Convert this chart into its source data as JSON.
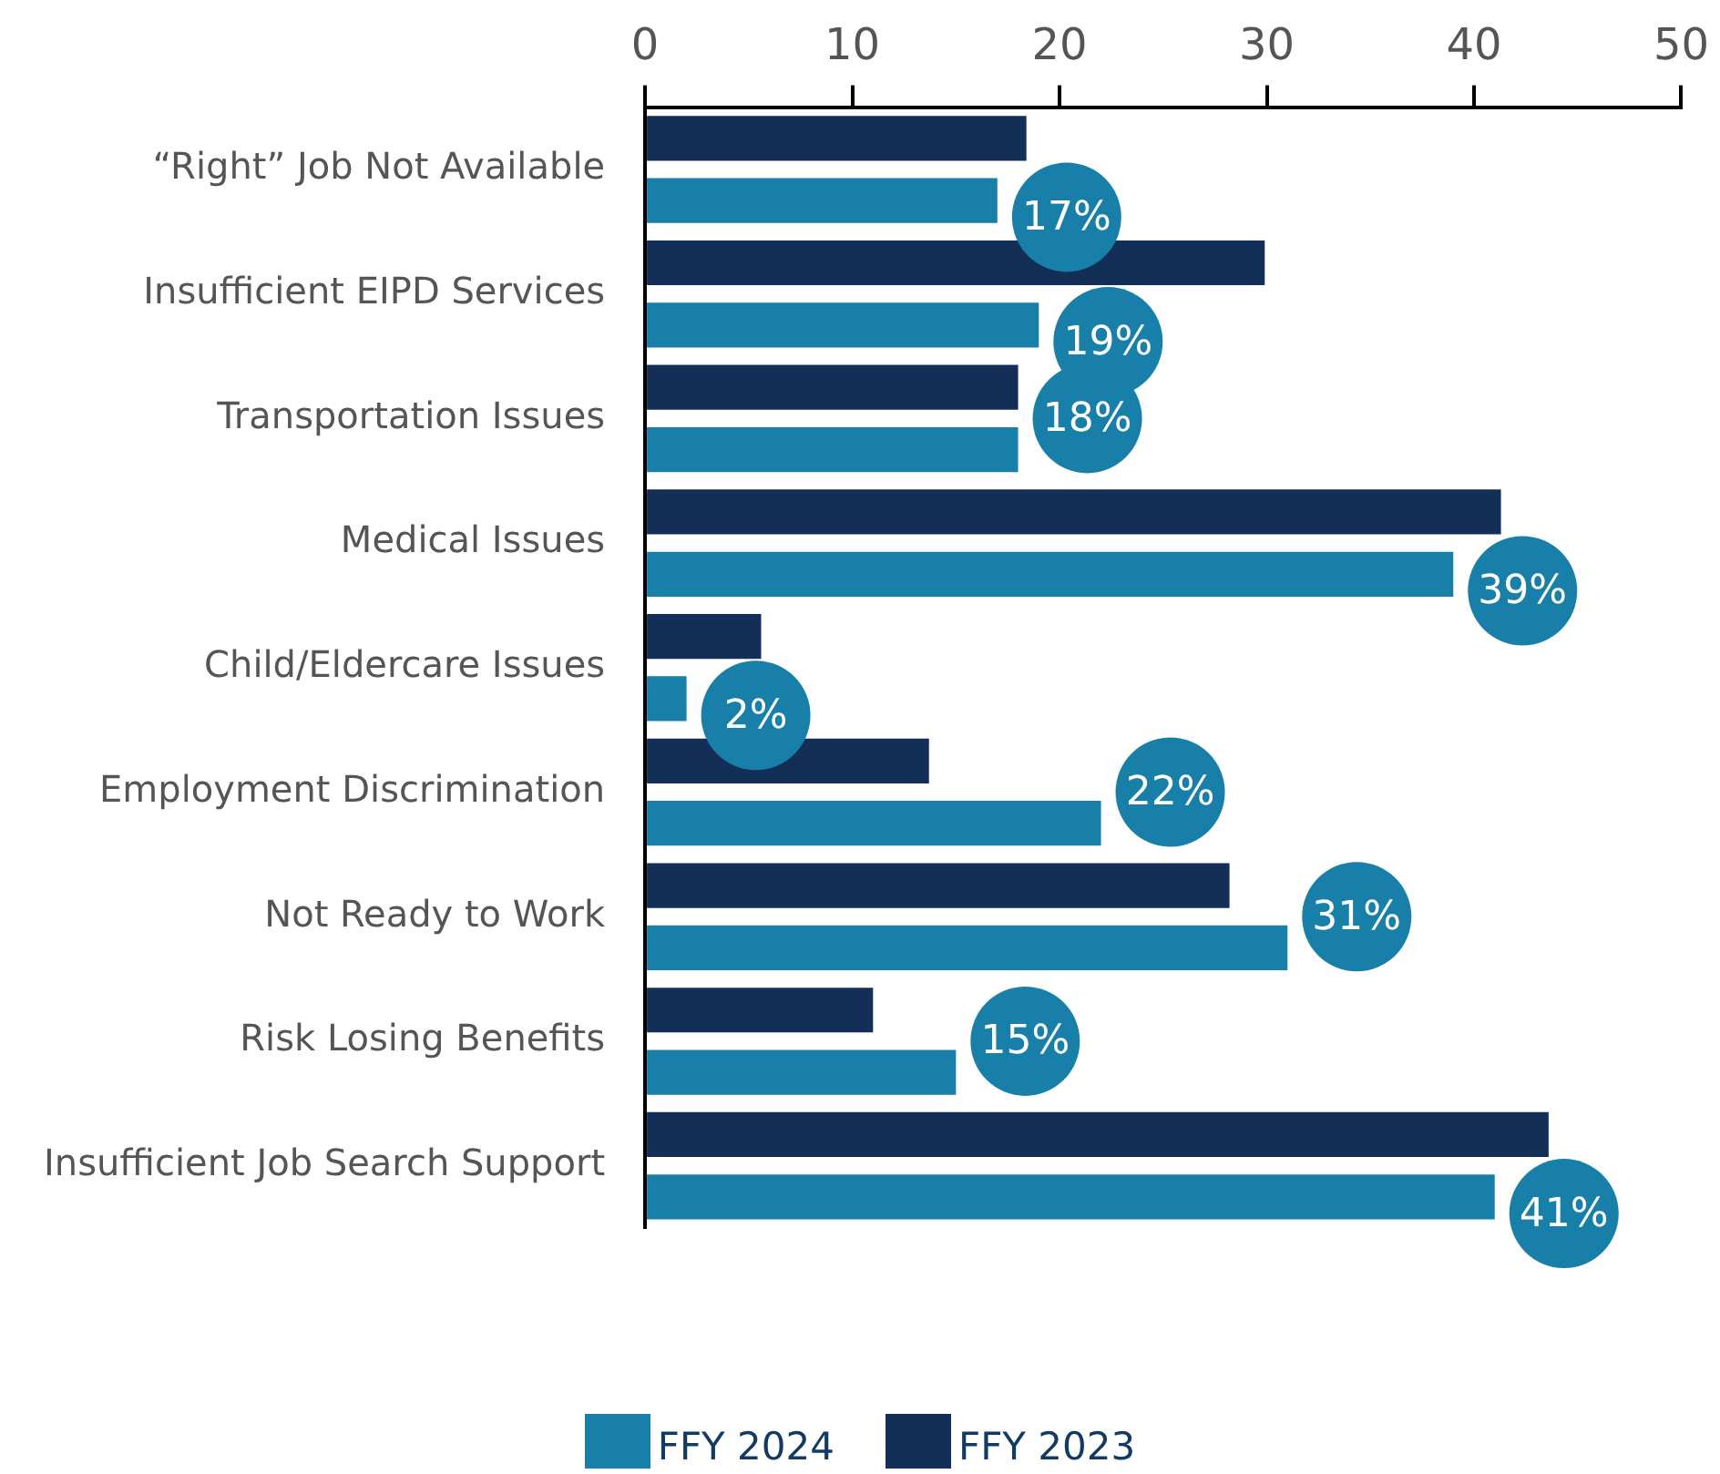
{
  "chart_data": {
    "type": "bar",
    "orientation": "horizontal",
    "categories": [
      "“Right” Job Not Available",
      "Insufficient EIPD Services",
      "Transportation Issues",
      "Medical Issues",
      "Child/Eldercare Issues",
      "Employment Discrimination",
      "Not Ready to Work",
      "Risk Losing Benefits",
      "Insufficient Job Search Support"
    ],
    "series": [
      {
        "name": "FFY 2023",
        "color": "#132e57",
        "values": [
          18.4,
          29.9,
          18.0,
          41.3,
          5.6,
          13.7,
          28.2,
          11.0,
          43.6
        ]
      },
      {
        "name": "FFY 2024",
        "color": "#1880a8",
        "values": [
          17,
          19,
          18,
          39,
          2,
          22,
          31,
          15,
          41
        ],
        "value_labels": [
          "17%",
          "19%",
          "18%",
          "39%",
          "2%",
          "22%",
          "31%",
          "15%",
          "41%"
        ]
      }
    ],
    "xlim": [
      0,
      50
    ],
    "xticks": [
      0,
      10,
      20,
      30,
      40,
      50
    ],
    "grid": false,
    "legend": "bottom"
  }
}
